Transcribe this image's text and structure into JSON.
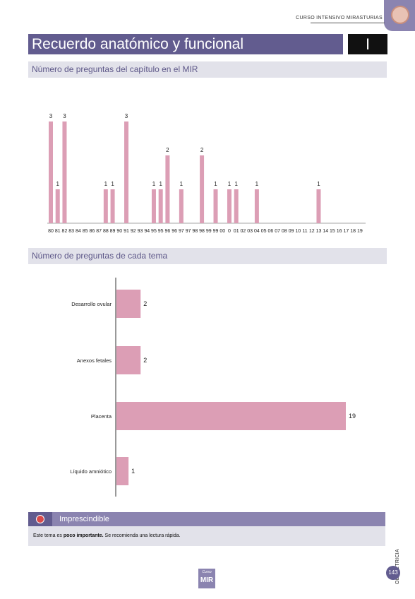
{
  "header": {
    "course": "CURSO INTENSIVO MIRASTURIAS"
  },
  "title": {
    "text": "Recuerdo anatómico y funcional",
    "chapter": "I"
  },
  "section1": {
    "title": "Número de preguntas del capítulo en el MIR"
  },
  "section2": {
    "title": "Número de preguntas de cada tema"
  },
  "colors": {
    "bar": "#dc9eb5",
    "primary": "#625c8f",
    "accent": "#8b84b0"
  },
  "chart_data": [
    {
      "type": "bar",
      "title": "",
      "xlabel": "",
      "ylabel": "",
      "ylim": [
        0,
        3
      ],
      "grid": false,
      "categories": [
        "80",
        "81",
        "82",
        "83",
        "84",
        "85",
        "86",
        "87",
        "88",
        "89",
        "90",
        "91",
        "92",
        "93",
        "94",
        "95",
        "95",
        "96",
        "96",
        "97",
        "97",
        "98",
        "98",
        "99",
        "99",
        "00",
        "0",
        "01",
        "02",
        "03",
        "04",
        "05",
        "06",
        "07",
        "08",
        "09",
        "10",
        "11",
        "12",
        "13",
        "14",
        "15",
        "16",
        "17",
        "18",
        "19"
      ],
      "values": [
        3,
        1,
        3,
        0,
        0,
        0,
        0,
        0,
        1,
        1,
        0,
        3,
        0,
        0,
        0,
        1,
        1,
        2,
        0,
        1,
        0,
        0,
        2,
        0,
        1,
        0,
        1,
        1,
        0,
        0,
        1,
        0,
        0,
        0,
        0,
        0,
        0,
        0,
        0,
        1,
        0,
        0,
        0,
        0,
        0,
        0
      ]
    },
    {
      "type": "bar",
      "orientation": "horizontal",
      "title": "",
      "xlabel": "",
      "ylabel": "",
      "xlim": [
        0,
        19
      ],
      "grid": false,
      "categories": [
        "Desarrollo ovular",
        "Anexos fetales",
        "Placenta",
        "Líquido amniótico"
      ],
      "values": [
        2,
        2,
        19,
        1
      ]
    }
  ],
  "important": {
    "title": "Imprescindible",
    "text_prefix": "Este tema es",
    "text_bold": "poco importante.",
    "text_suffix": "Se recomienda una lectura rápida."
  },
  "sidebar": {
    "subject": "OBSTETRICIA"
  },
  "footer": {
    "page": "143",
    "logo_small": "Curso",
    "logo_main": "MIR"
  }
}
